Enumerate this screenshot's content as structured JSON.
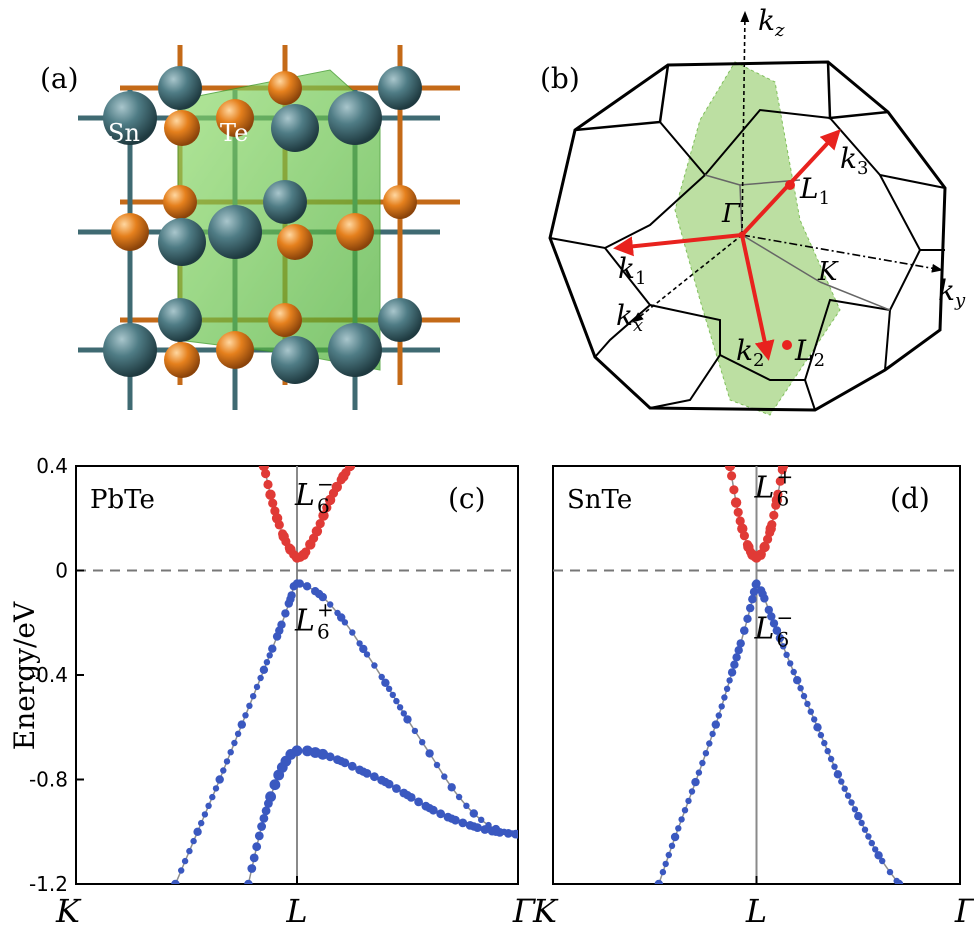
{
  "panel_a": {
    "label": "(a)",
    "atom_sn": "Sn",
    "atom_te": "Te",
    "colors": {
      "sn": "#3f6a72",
      "te": "#e07a1a",
      "plane": "#5cc23a"
    }
  },
  "panel_b": {
    "label": "(b)",
    "axes": {
      "kz": "k",
      "kz_sub": "z",
      "ky": "k",
      "ky_sub": "y",
      "kx": "k",
      "kx_sub": "x"
    },
    "vectors": [
      {
        "main": "k",
        "sub": "1"
      },
      {
        "main": "k",
        "sub": "2"
      },
      {
        "main": "k",
        "sub": "3"
      }
    ],
    "points": [
      {
        "main": "L",
        "sub": "1"
      },
      {
        "main": "L",
        "sub": "2"
      },
      {
        "main": "Γ",
        "sub": ""
      },
      {
        "main": "K",
        "sub": ""
      }
    ],
    "colors": {
      "vector": "#e8221e",
      "plane": "#9fd27a"
    }
  },
  "ylabel": "Energy/eV",
  "chart_data": [
    {
      "type": "line",
      "panel_label": "(c)",
      "material": "PbTe",
      "ylabel": "Energy/eV",
      "ylim": [
        -1.2,
        0.4
      ],
      "yticks": [
        "0.4",
        "0",
        "-0.4",
        "-0.8",
        "-1.2"
      ],
      "ytick_values": [
        0.4,
        0,
        -0.4,
        -0.8,
        -1.2
      ],
      "xticks": [
        "K",
        "L",
        "Γ"
      ],
      "xtick_positions": [
        0,
        1,
        2
      ],
      "fermi_level": 0,
      "state_labels": [
        {
          "text": "L",
          "sup": "−",
          "sub": "6",
          "x": 1.0,
          "y": 0.25
        },
        {
          "text": "L",
          "sup": "+",
          "sub": "6",
          "x": 1.0,
          "y": -0.23
        }
      ],
      "series": [
        {
          "band": "conduction",
          "color": "#e03a36",
          "x": [
            0.85,
            0.88,
            0.91,
            0.94,
            0.97,
            1.0,
            1.03,
            1.06,
            1.09,
            1.12,
            1.15,
            1.18,
            1.21,
            1.24
          ],
          "y": [
            0.4,
            0.29,
            0.2,
            0.13,
            0.08,
            0.05,
            0.06,
            0.1,
            0.15,
            0.21,
            0.27,
            0.32,
            0.36,
            0.4
          ]
        },
        {
          "band": "valence-1",
          "color": "#3a58c0",
          "x": [
            0.45,
            0.55,
            0.65,
            0.75,
            0.85,
            0.92,
            0.97,
            1.0,
            1.1,
            1.2,
            1.3,
            1.4,
            1.5,
            1.6,
            1.7,
            1.8,
            1.9,
            2.0
          ],
          "y": [
            -1.2,
            -1.0,
            -0.8,
            -0.59,
            -0.38,
            -0.23,
            -0.11,
            -0.05,
            -0.09,
            -0.18,
            -0.3,
            -0.43,
            -0.57,
            -0.7,
            -0.83,
            -0.93,
            -0.99,
            -1.01
          ]
        },
        {
          "band": "valence-2",
          "color": "#3a58c0",
          "x": [
            0.78,
            0.84,
            0.9,
            0.95,
            1.0,
            1.1,
            1.2,
            1.3,
            1.4,
            1.5,
            1.6,
            1.7,
            1.8,
            1.9,
            2.0
          ],
          "y": [
            -1.2,
            -0.98,
            -0.82,
            -0.73,
            -0.69,
            -0.7,
            -0.73,
            -0.77,
            -0.81,
            -0.86,
            -0.91,
            -0.95,
            -0.98,
            -1.0,
            -1.01
          ]
        }
      ]
    },
    {
      "type": "line",
      "panel_label": "(d)",
      "material": "SnTe",
      "ylim": [
        -1.2,
        0.4
      ],
      "xticks": [
        "K",
        "L",
        "Γ"
      ],
      "xtick_positions": [
        0,
        1,
        2
      ],
      "fermi_level": 0,
      "state_labels": [
        {
          "text": "L",
          "sup": "+",
          "sub": "6",
          "x": 1.0,
          "y": 0.28
        },
        {
          "text": "L",
          "sup": "−",
          "sub": "6",
          "x": 1.0,
          "y": -0.26
        }
      ],
      "series": [
        {
          "band": "conduction",
          "color": "#e03a36",
          "x": [
            0.87,
            0.9,
            0.93,
            0.96,
            0.98,
            1.0,
            1.02,
            1.04,
            1.07,
            1.1,
            1.13
          ],
          "y": [
            0.4,
            0.26,
            0.16,
            0.09,
            0.06,
            0.05,
            0.06,
            0.09,
            0.16,
            0.27,
            0.4
          ]
        },
        {
          "band": "valence",
          "color": "#3a58c0",
          "x": [
            0.52,
            0.6,
            0.7,
            0.8,
            0.88,
            0.94,
            0.98,
            1.0,
            1.03,
            1.1,
            1.2,
            1.3,
            1.4,
            1.5,
            1.6,
            1.7
          ],
          "y": [
            -1.2,
            -1.02,
            -0.81,
            -0.59,
            -0.39,
            -0.23,
            -0.11,
            -0.05,
            -0.09,
            -0.23,
            -0.42,
            -0.6,
            -0.78,
            -0.94,
            -1.09,
            -1.2
          ]
        }
      ]
    }
  ]
}
